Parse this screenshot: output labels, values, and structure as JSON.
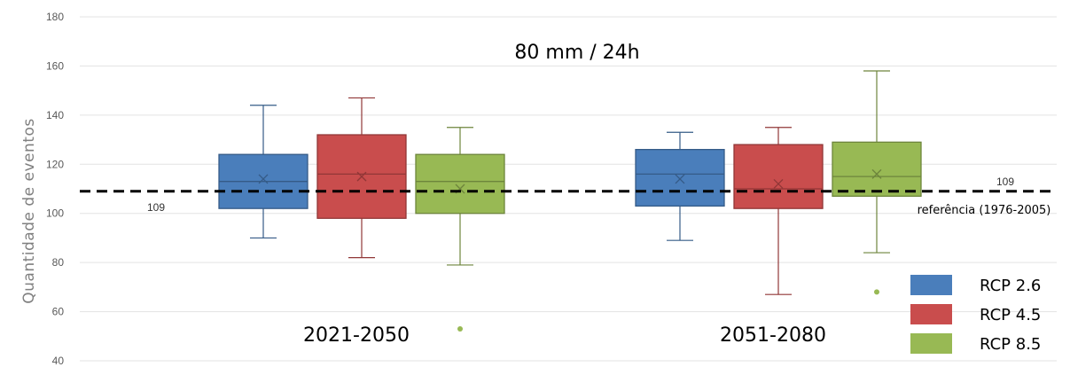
{
  "chart_data": {
    "type": "box",
    "title": "80 mm / 24h",
    "ylabel": "Quantidade de eventos",
    "ylim": [
      40,
      180
    ],
    "yticks": [
      40,
      60,
      80,
      100,
      120,
      140,
      160,
      180
    ],
    "grid": true,
    "legend_position": "bottom-right",
    "categories": [
      "2021-2050",
      "2051-2080"
    ],
    "reference": {
      "value": 109,
      "label": "referência (1976-2005)"
    },
    "series": [
      {
        "name": "RCP 2.6",
        "color": "#4a7ebb",
        "boxes": [
          {
            "min": 90,
            "q1": 102,
            "median": 113,
            "q3": 124,
            "max": 144,
            "mean": 114,
            "outliers": []
          },
          {
            "min": 89,
            "q1": 103,
            "median": 116,
            "q3": 126,
            "max": 133,
            "mean": 114,
            "outliers": []
          }
        ]
      },
      {
        "name": "RCP 4.5",
        "color": "#c94d4d",
        "boxes": [
          {
            "min": 82,
            "q1": 98,
            "median": 116,
            "q3": 132,
            "max": 147,
            "mean": 115,
            "outliers": []
          },
          {
            "min": 67,
            "q1": 102,
            "median": 110,
            "q3": 128,
            "max": 135,
            "mean": 112,
            "outliers": []
          }
        ]
      },
      {
        "name": "RCP 8.5",
        "color": "#98b954",
        "boxes": [
          {
            "min": 79,
            "q1": 100,
            "median": 113,
            "q3": 124,
            "max": 135,
            "mean": 110,
            "outliers": [
              53
            ]
          },
          {
            "min": 84,
            "q1": 107,
            "median": 115,
            "q3": 129,
            "max": 158,
            "mean": 116,
            "outliers": [
              68
            ]
          }
        ]
      }
    ]
  }
}
